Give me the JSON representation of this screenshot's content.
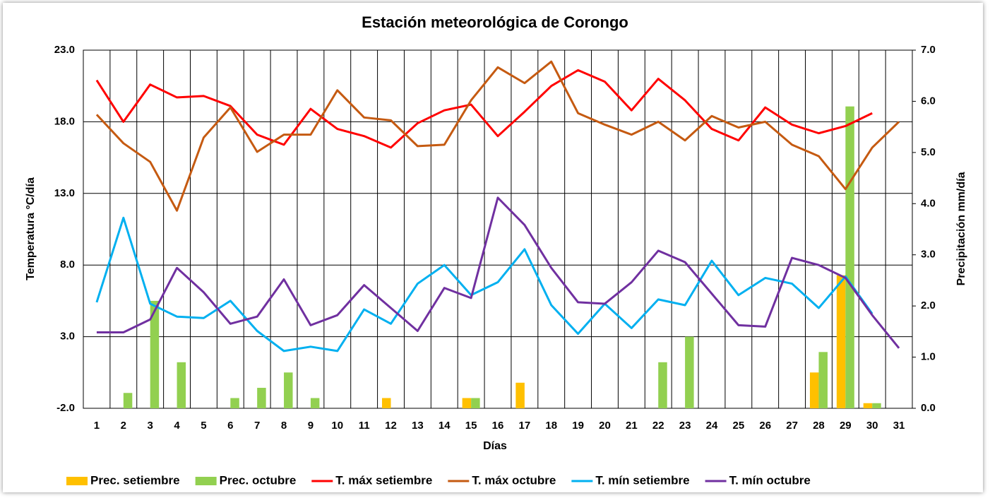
{
  "chart_data": {
    "type": "combo",
    "title": "Estación meteorológica de Corongo",
    "x_label": "Días",
    "y_label": "Temperatura °C/día",
    "y2_label": "Precipitación mm/día",
    "categories": [
      "1",
      "2",
      "3",
      "4",
      "5",
      "6",
      "7",
      "8",
      "9",
      "10",
      "11",
      "12",
      "13",
      "14",
      "15",
      "16",
      "17",
      "18",
      "19",
      "20",
      "21",
      "22",
      "23",
      "24",
      "25",
      "26",
      "27",
      "28",
      "29",
      "30",
      "31"
    ],
    "ylim": [
      -2,
      23
    ],
    "yticks": [
      {
        "value": -2,
        "label": "-2.0"
      },
      {
        "value": 3,
        "label": "3.0"
      },
      {
        "value": 8,
        "label": "8.0"
      },
      {
        "value": 13,
        "label": "13.0"
      },
      {
        "value": 18,
        "label": "18.0"
      },
      {
        "value": 23,
        "label": "23.0"
      }
    ],
    "y2lim": [
      0,
      7
    ],
    "y2ticks": [
      {
        "value": 0,
        "label": "0.0"
      },
      {
        "value": 1,
        "label": "1.0"
      },
      {
        "value": 2,
        "label": "2.0"
      },
      {
        "value": 3,
        "label": "3.0"
      },
      {
        "value": 4,
        "label": "4.0"
      },
      {
        "value": 5,
        "label": "5.0"
      },
      {
        "value": 6,
        "label": "6.0"
      },
      {
        "value": 7,
        "label": "7.0"
      }
    ],
    "grid": true,
    "legend": "bottom",
    "series": [
      {
        "name": "Prec. setiembre",
        "type": "bar",
        "axis": "y2",
        "color": "#ffc000",
        "values": [
          0,
          0,
          0,
          0,
          0,
          0,
          0,
          0,
          0,
          0,
          0,
          0.2,
          0,
          0,
          0.2,
          0,
          0.5,
          0,
          0,
          0,
          0,
          0,
          0,
          0,
          0,
          0,
          0,
          0.7,
          2.6,
          0.1,
          null
        ]
      },
      {
        "name": "Prec. octubre",
        "type": "bar",
        "axis": "y2",
        "color": "#92d050",
        "values": [
          0,
          0.3,
          2.1,
          0.9,
          0,
          0.2,
          0.4,
          0.7,
          0.2,
          0,
          0,
          0,
          0,
          0,
          0.2,
          0,
          0,
          0,
          0,
          0,
          0,
          0.9,
          1.4,
          0,
          0,
          0,
          0,
          1.1,
          5.9,
          0.1,
          null
        ]
      },
      {
        "name": "T. máx setiembre",
        "type": "line",
        "color": "#ff0000",
        "values": [
          20.9,
          18.0,
          20.6,
          19.7,
          19.8,
          19.1,
          17.1,
          16.4,
          18.9,
          17.5,
          17.0,
          16.2,
          17.9,
          18.8,
          19.2,
          17.0,
          18.7,
          20.5,
          21.6,
          20.8,
          18.8,
          21.0,
          19.5,
          17.5,
          16.7,
          19.0,
          17.8,
          17.2,
          17.7,
          18.6,
          null
        ]
      },
      {
        "name": "T. máx octubre",
        "type": "line",
        "color": "#c55a11",
        "values": [
          18.5,
          16.5,
          15.2,
          11.8,
          16.9,
          19.0,
          15.9,
          17.1,
          17.1,
          20.2,
          18.3,
          18.1,
          16.3,
          16.4,
          19.5,
          21.8,
          20.7,
          22.2,
          18.6,
          17.8,
          17.1,
          18.0,
          16.7,
          18.4,
          17.6,
          18.0,
          16.4,
          15.6,
          13.3,
          16.2,
          18.0
        ]
      },
      {
        "name": "T. mín setiembre",
        "type": "line",
        "color": "#00b0f0",
        "values": [
          5.4,
          11.3,
          5.3,
          4.4,
          4.3,
          5.5,
          3.4,
          2.0,
          2.3,
          2.0,
          4.9,
          3.9,
          6.7,
          8.0,
          5.9,
          6.8,
          9.1,
          5.2,
          3.2,
          5.3,
          3.6,
          5.6,
          5.2,
          8.3,
          5.9,
          7.1,
          6.7,
          5.0,
          7.2,
          4.6,
          null
        ]
      },
      {
        "name": "T. mín octubre",
        "type": "line",
        "color": "#7030a0",
        "values": [
          3.3,
          3.3,
          4.2,
          7.8,
          6.1,
          3.9,
          4.4,
          7.0,
          3.8,
          4.5,
          6.6,
          5.0,
          3.4,
          6.4,
          5.7,
          12.7,
          10.8,
          7.8,
          5.4,
          5.3,
          6.8,
          9.0,
          8.2,
          6.0,
          3.8,
          3.7,
          8.5,
          8.0,
          7.1,
          4.5,
          2.2
        ]
      }
    ]
  }
}
